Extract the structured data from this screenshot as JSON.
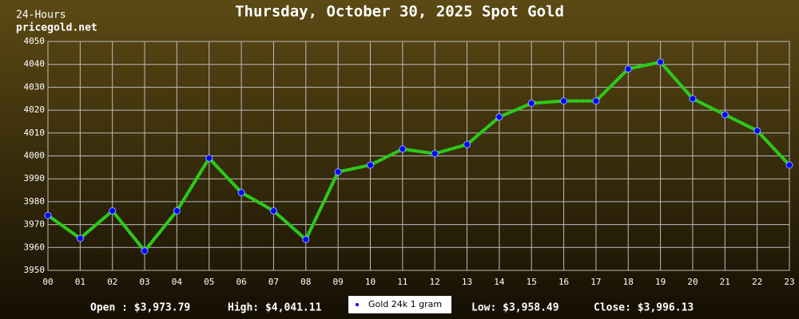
{
  "chart_data": {
    "type": "line",
    "title": "Thursday, October 30, 2025 Spot Gold",
    "period_label": "24-Hours",
    "source": "pricegold.net",
    "categories": [
      "00",
      "01",
      "02",
      "03",
      "04",
      "05",
      "06",
      "07",
      "08",
      "09",
      "10",
      "11",
      "12",
      "13",
      "14",
      "15",
      "16",
      "17",
      "18",
      "19",
      "20",
      "21",
      "22",
      "23"
    ],
    "series": [
      {
        "name": "Gold 24k 1 gram",
        "color": "#33dd22",
        "marker_color": "#0000ff",
        "values": [
          3974,
          3964,
          3976,
          3958.5,
          3976,
          3999,
          3984,
          3976,
          3963.5,
          3993,
          3996,
          4003,
          4001,
          4005,
          4017,
          4023,
          4024,
          4024,
          4038,
          4041,
          4025,
          4018,
          4011,
          3996
        ]
      }
    ],
    "ylim": [
      3950,
      4050
    ],
    "yticks": [
      3950,
      3960,
      3970,
      3980,
      3990,
      4000,
      4010,
      4020,
      4030,
      4040,
      4050
    ],
    "grid": true,
    "stats": [
      "Open : $3,973.79",
      "High: $4,041.11",
      "Low: $3,958.49",
      "Close: $3,996.13"
    ]
  }
}
